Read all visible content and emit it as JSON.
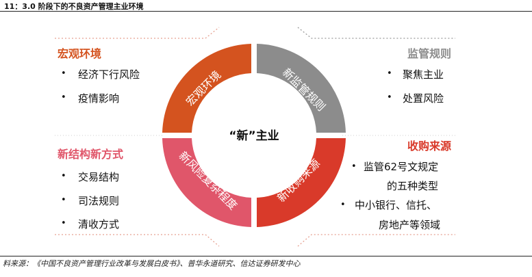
{
  "figure": {
    "title": "11：3.0 阶段下的不良资产管理主业环境",
    "source": "料来源：《中国不良资产管理行业改革与发展白皮书》、普华永道研究、信达证券研发中心"
  },
  "center_label": "“新”主业",
  "segments": [
    {
      "label": "宏观环境",
      "color": "#d4531f"
    },
    {
      "label": "新监管规则",
      "color": "#8c8c8c"
    },
    {
      "label": "新收购来源",
      "color": "#d93a2a"
    },
    {
      "label": "新风险复杂程度",
      "color": "#e0566a"
    }
  ],
  "panels": {
    "top_left": {
      "title": "宏观环境",
      "title_color": "#d4531f",
      "items": [
        "经济下行风险",
        "疫情影响"
      ]
    },
    "top_right": {
      "title": "监管规则",
      "title_color": "#8c8c8c",
      "items": [
        "聚焦主业",
        "处置风险"
      ]
    },
    "bottom_left": {
      "title": "新结构新方式",
      "title_color": "#e0566a",
      "items": [
        "交易结构",
        "司法规则",
        "清收方式"
      ]
    },
    "bottom_right": {
      "title": "收购来源",
      "title_color": "#d93a2a",
      "items": [
        "监管62号文规定",
        "的五种类型",
        "中小银行、信托、",
        "房地产等领域"
      ]
    }
  },
  "bullet_symbol": "•"
}
